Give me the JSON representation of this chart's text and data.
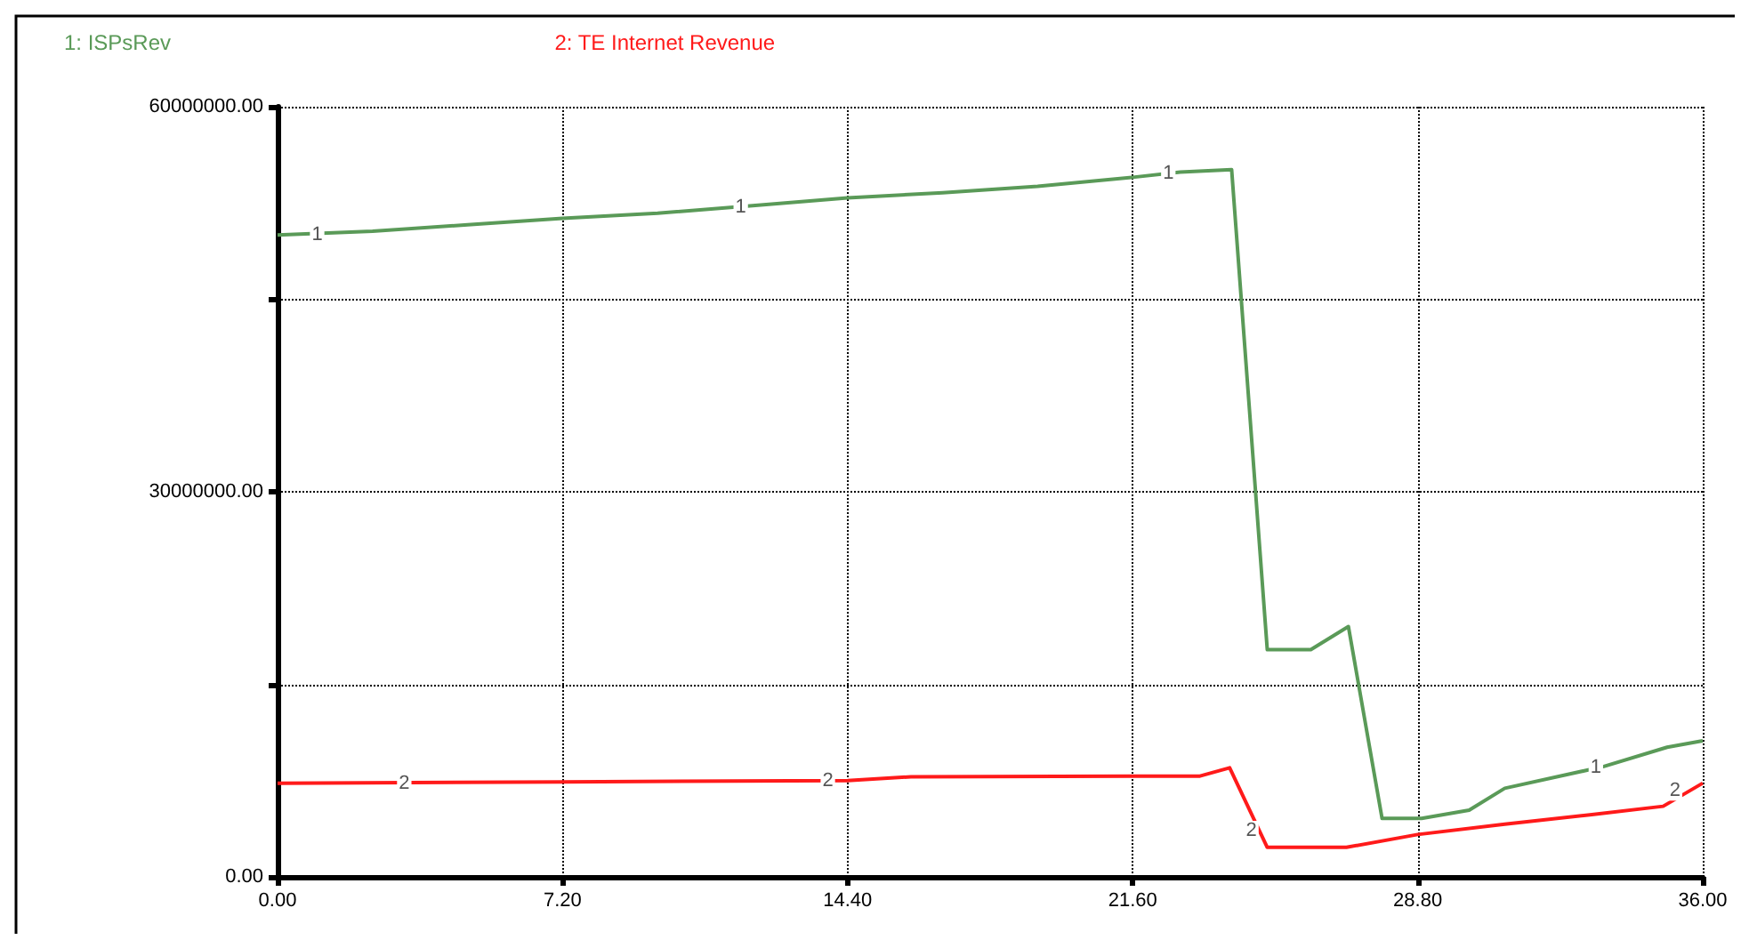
{
  "chart_data": {
    "type": "line",
    "x": [
      0,
      2.4,
      4.8,
      7.2,
      9.6,
      12,
      14.4,
      16.8,
      19.2,
      21.6,
      22.8,
      24.1,
      25.0,
      26.1,
      27.05,
      27.9,
      28.9,
      30.1,
      31.0,
      33.5,
      35.1,
      36
    ],
    "series": [
      {
        "name": "1: ISPsRev",
        "color": "#5a9a58",
        "values": [
          50000000,
          50300000,
          50800000,
          51300000,
          51700000,
          52300000,
          52900000,
          53300000,
          53800000,
          54500000,
          54900000,
          55100000,
          17700000,
          17700000,
          19500000,
          4550000,
          4550000,
          5200000,
          6900000,
          8600000,
          10100000,
          10600000
        ]
      },
      {
        "name": "2: TE Internet Revenue",
        "color": "#ff1a1a",
        "x": [
          0,
          7.2,
          14.4,
          16.0,
          21.6,
          23.3,
          24.05,
          25.0,
          27.0,
          28.8,
          31.0,
          33.2,
          35.0,
          36
        ],
        "values": [
          7300000,
          7400000,
          7500000,
          7800000,
          7850000,
          7850000,
          8500000,
          2300000,
          2300000,
          3300000,
          4100000,
          4850000,
          5500000,
          7300000
        ]
      }
    ],
    "xlim": [
      0,
      36
    ],
    "xticks": [
      {
        "value": 0,
        "label": "0.00"
      },
      {
        "value": 7.2,
        "label": "7.20"
      },
      {
        "value": 14.4,
        "label": "14.40"
      },
      {
        "value": 21.6,
        "label": "21.60"
      },
      {
        "value": 28.8,
        "label": "28.80"
      },
      {
        "value": 36,
        "label": "36.00"
      }
    ],
    "ylim": [
      0,
      60000000
    ],
    "yticks": [
      {
        "value": 0,
        "label": "0.00"
      },
      {
        "value": 15000000,
        "label": null
      },
      {
        "value": 30000000,
        "label": "30000000.00"
      },
      {
        "value": 45000000,
        "label": null
      },
      {
        "value": 60000000,
        "label": "60000000.00"
      }
    ],
    "annotations": [
      {
        "text": "1",
        "x": 1.0,
        "y": 50000000
      },
      {
        "text": "1",
        "x": 11.7,
        "y": 52200000
      },
      {
        "text": "1",
        "x": 22.5,
        "y": 54800000
      },
      {
        "text": "1",
        "x": 33.3,
        "y": 8500000
      },
      {
        "text": "2",
        "x": 3.2,
        "y": 7300000
      },
      {
        "text": "2",
        "x": 13.9,
        "y": 7500000
      },
      {
        "text": "2",
        "x": 24.6,
        "y": 3600000
      },
      {
        "text": "2",
        "x": 35.3,
        "y": 6700000
      }
    ],
    "grid": true,
    "legend": "top",
    "marker": "none",
    "line_style": "solid"
  }
}
